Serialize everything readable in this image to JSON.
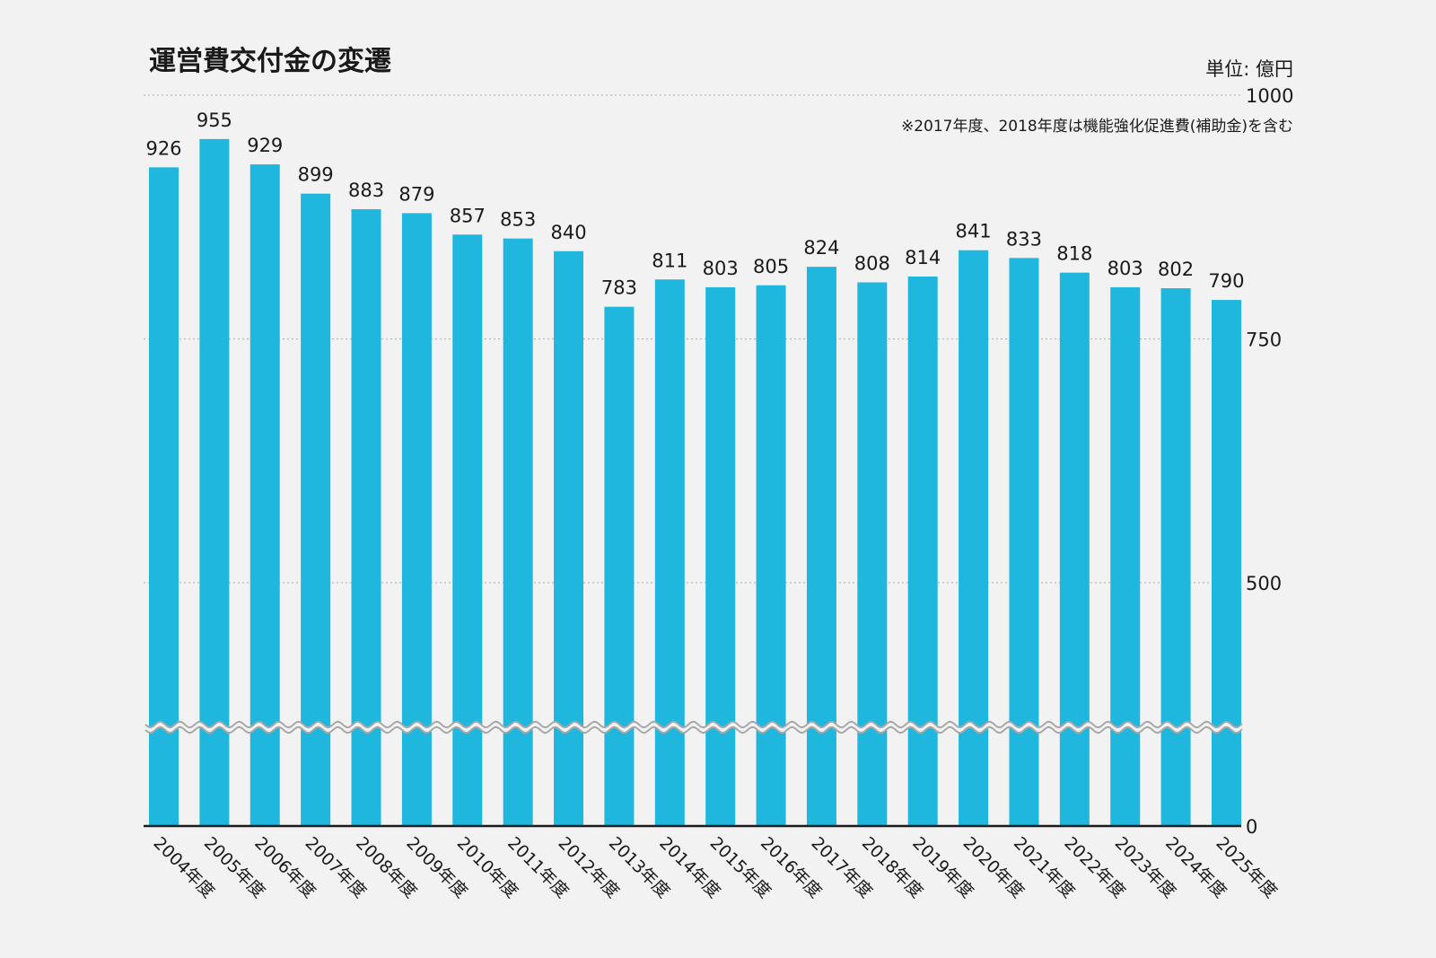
{
  "chart_data": {
    "type": "bar",
    "title": "運営費交付金の変遷",
    "unit_label": "単位: 億円",
    "note": "※2017年度、2018年度は機能強化促進費(補助金)を含む",
    "categories": [
      "2004年度",
      "2005年度",
      "2006年度",
      "2007年度",
      "2008年度",
      "2009年度",
      "2010年度",
      "2011年度",
      "2012年度",
      "2013年度",
      "2014年度",
      "2015年度",
      "2016年度",
      "2017年度",
      "2018年度",
      "2019年度",
      "2020年度",
      "2021年度",
      "2022年度",
      "2023年度",
      "2024年度",
      "2025年度"
    ],
    "values": [
      926,
      955,
      929,
      899,
      883,
      879,
      857,
      853,
      840,
      783,
      811,
      803,
      805,
      824,
      808,
      814,
      841,
      833,
      818,
      803,
      802,
      790
    ],
    "value_labels": [
      "926",
      "955",
      "929",
      "899",
      "883",
      "879",
      "857",
      "853",
      "840",
      "783",
      "811",
      "803",
      "805",
      "824",
      "808",
      "814",
      "841",
      "833",
      "818",
      "803",
      "802",
      "790"
    ],
    "y_ticks": [
      0,
      500,
      750,
      1000
    ],
    "y_tick_labels": [
      "0",
      "500",
      "750",
      "1000"
    ],
    "axis_break": true,
    "axis_position": "right",
    "grid": true,
    "colors": {
      "bar": "#20b7df",
      "background": "#f2f2f2",
      "text": "#1a1a1a",
      "grid": "#b8b8b8"
    }
  }
}
